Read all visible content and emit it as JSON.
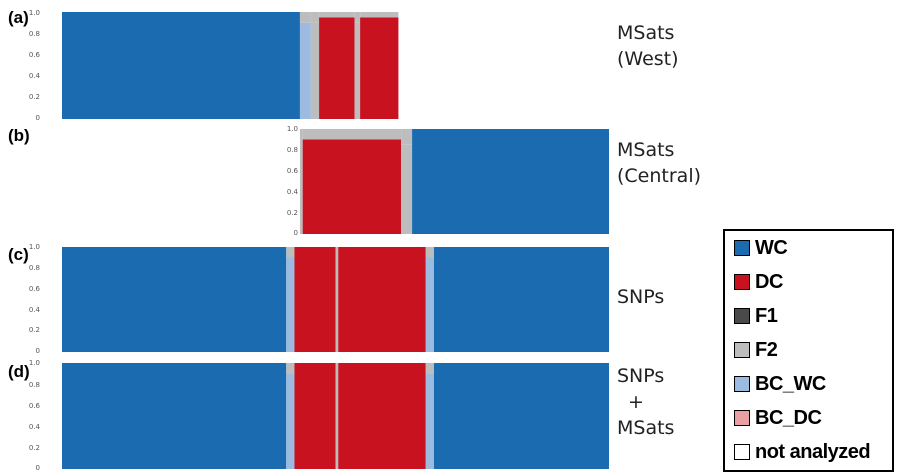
{
  "chart_data": {
    "type": "structure_admixture_barplot",
    "ylim": [
      0,
      1
    ],
    "ytick_labels": [
      "1.0",
      "0.8",
      "0.6",
      "0.4",
      "0.2",
      "0"
    ],
    "colors": {
      "WC": "#1a6bb0",
      "DC": "#c8121f",
      "F1": "#4a4a4a",
      "F2": "#bdbdbd",
      "BC_WC": "#9bbbe0",
      "BC_DC": "#e8a0a4",
      "not_analyzed": "#ffffff"
    },
    "legend": [
      {
        "key": "WC",
        "label": "WC",
        "color": "#1a6bb0"
      },
      {
        "key": "DC",
        "label": "DC",
        "color": "#c8121f"
      },
      {
        "key": "F1",
        "label": "F1",
        "color": "#4a4a4a"
      },
      {
        "key": "F2",
        "label": "F2",
        "color": "#bdbdbd"
      },
      {
        "key": "BC_WC",
        "label": "BC_WC",
        "color": "#9bbbe0"
      },
      {
        "key": "BC_DC",
        "label": "BC_DC",
        "color": "#e8a0a4"
      },
      {
        "key": "not_analyzed",
        "label": "not analyzed",
        "color": "#ffffff"
      }
    ],
    "panels": [
      {
        "label": "(a)",
        "title_lines": [
          "MSats",
          "(West)"
        ],
        "blocks": [
          {
            "start": 0.0,
            "end": 0.435,
            "cluster": "WC",
            "q": 1.0
          },
          {
            "start": 0.435,
            "end": 0.455,
            "cluster": "BC_WC",
            "q": 0.9
          },
          {
            "start": 0.455,
            "end": 0.47,
            "cluster": "F2",
            "q": 0.9
          },
          {
            "start": 0.47,
            "end": 0.535,
            "cluster": "DC",
            "q": 0.95
          },
          {
            "start": 0.535,
            "end": 0.545,
            "cluster": "F2",
            "q": 0.9
          },
          {
            "start": 0.545,
            "end": 0.615,
            "cluster": "DC",
            "q": 0.95
          },
          {
            "start": 0.615,
            "end": 1.0,
            "cluster": "not_analyzed",
            "q": 1.0
          }
        ]
      },
      {
        "label": "(b)",
        "title_lines": [
          "MSats",
          "(Central)"
        ],
        "blocks": [
          {
            "start": 0.0,
            "end": 0.435,
            "cluster": "not_analyzed",
            "q": 1.0
          },
          {
            "start": 0.435,
            "end": 0.44,
            "cluster": "F2",
            "q": 0.9
          },
          {
            "start": 0.44,
            "end": 0.62,
            "cluster": "DC",
            "q": 0.9
          },
          {
            "start": 0.62,
            "end": 0.64,
            "cluster": "F2",
            "q": 0.85
          },
          {
            "start": 0.64,
            "end": 1.0,
            "cluster": "WC",
            "q": 1.0
          }
        ]
      },
      {
        "label": "(c)",
        "title_lines": [
          "SNPs"
        ],
        "blocks": [
          {
            "start": 0.0,
            "end": 0.41,
            "cluster": "WC",
            "q": 1.0
          },
          {
            "start": 0.41,
            "end": 0.425,
            "cluster": "BC_WC",
            "q": 0.9
          },
          {
            "start": 0.425,
            "end": 0.5,
            "cluster": "DC",
            "q": 1.0
          },
          {
            "start": 0.5,
            "end": 0.505,
            "cluster": "F2",
            "q": 1.0
          },
          {
            "start": 0.505,
            "end": 0.665,
            "cluster": "DC",
            "q": 1.0
          },
          {
            "start": 0.665,
            "end": 0.68,
            "cluster": "BC_WC",
            "q": 0.9
          },
          {
            "start": 0.68,
            "end": 1.0,
            "cluster": "WC",
            "q": 1.0
          }
        ]
      },
      {
        "label": "(d)",
        "title_lines": [
          "SNPs",
          "+",
          "MSats"
        ],
        "blocks": [
          {
            "start": 0.0,
            "end": 0.41,
            "cluster": "WC",
            "q": 1.0
          },
          {
            "start": 0.41,
            "end": 0.425,
            "cluster": "BC_WC",
            "q": 0.9
          },
          {
            "start": 0.425,
            "end": 0.5,
            "cluster": "DC",
            "q": 1.0
          },
          {
            "start": 0.5,
            "end": 0.505,
            "cluster": "F2",
            "q": 1.0
          },
          {
            "start": 0.505,
            "end": 0.665,
            "cluster": "DC",
            "q": 1.0
          },
          {
            "start": 0.665,
            "end": 0.68,
            "cluster": "BC_WC",
            "q": 0.9
          },
          {
            "start": 0.68,
            "end": 1.0,
            "cluster": "WC",
            "q": 1.0
          }
        ]
      }
    ]
  }
}
